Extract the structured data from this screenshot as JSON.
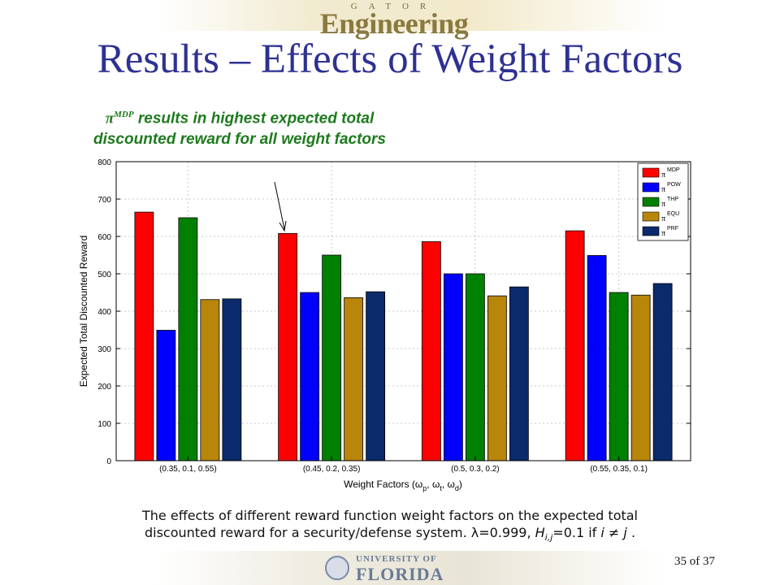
{
  "header": {
    "logo_small": "GATOR",
    "logo_main": "Engineering"
  },
  "slide": {
    "title": "Results – Effects of Weight Factors",
    "annotation_pi": "π",
    "annotation_sup": "MDP",
    "annotation_text": " results in highest expected total discounted reward for all weight factors",
    "caption_line1": "The effects of different reward function weight factors on the expected total",
    "caption_line2_a": "discounted reward for a security/defense system. λ=0.999, ",
    "caption_H": "H",
    "caption_sub": "i,j",
    "caption_line2_b": "=0.1 if ",
    "caption_ij": "i ≠ j",
    "caption_end": " .",
    "page": "35 of 37"
  },
  "footer": {
    "univ": "UNIVERSITY OF",
    "florida": "FLORIDA"
  },
  "chart_data": {
    "type": "bar",
    "categories": [
      "(0.35, 0.1, 0.55)",
      "(0.45, 0.2, 0.35)",
      "(0.5, 0.3, 0.2)",
      "(0.55, 0.35, 0.1)"
    ],
    "series": [
      {
        "name": "MDP",
        "color": "#ff0000",
        "values": [
          665,
          608,
          586,
          615
        ]
      },
      {
        "name": "POW",
        "color": "#0000ff",
        "values": [
          349,
          450,
          500,
          549
        ]
      },
      {
        "name": "THP",
        "color": "#008000",
        "values": [
          650,
          550,
          500,
          450
        ]
      },
      {
        "name": "EQU",
        "color": "#b8860b",
        "values": [
          431,
          436,
          441,
          443
        ]
      },
      {
        "name": "PRF",
        "color": "#0a2a6b",
        "values": [
          433,
          452,
          465,
          474
        ]
      }
    ],
    "legend_prefix": "π",
    "xlabel": "Weight Factors (ω",
    "xlabel_subs": [
      "p",
      "t",
      "d"
    ],
    "ylabel": "Expected Total Discounted Reward",
    "ylim": [
      0,
      800
    ],
    "yticks": [
      0,
      100,
      200,
      300,
      400,
      500,
      600,
      700,
      800
    ],
    "grid": true,
    "legend_position": "top-right"
  }
}
